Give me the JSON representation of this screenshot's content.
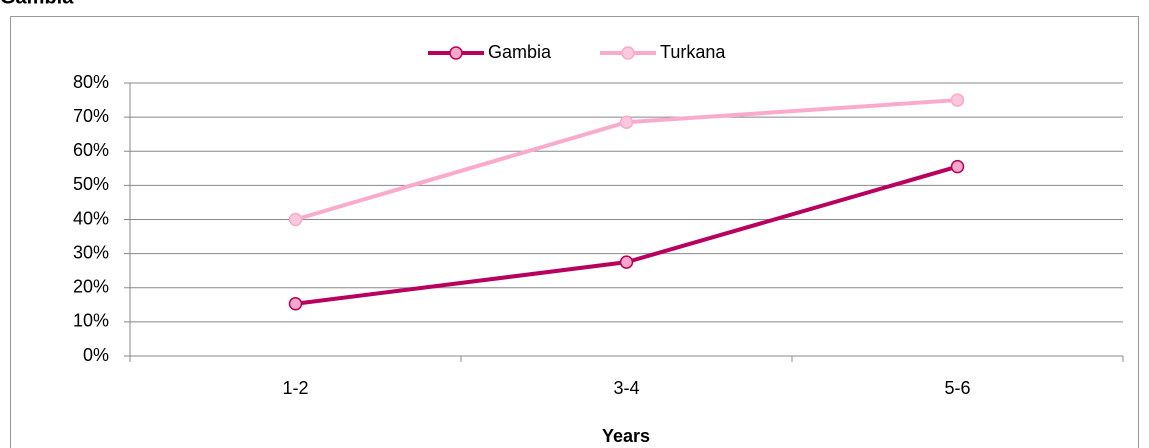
{
  "heading": "Gambia",
  "chart_data": {
    "type": "line",
    "x_label": "Years",
    "categories": [
      "1-2",
      "3-4",
      "5-6"
    ],
    "series": [
      {
        "name": "Gambia",
        "color": "#b8005e",
        "marker_color": "#f5a9c9",
        "values": [
          15.3,
          27.5,
          55.5
        ]
      },
      {
        "name": "Turkana",
        "color": "#f9aacd",
        "marker_color": "#fbc8de",
        "values": [
          40,
          68.5,
          75
        ]
      }
    ],
    "ylim": [
      0,
      80
    ],
    "yticks": [
      {
        "value": 0,
        "label": "0%"
      },
      {
        "value": 10,
        "label": "10%"
      },
      {
        "value": 20,
        "label": "20%"
      },
      {
        "value": 30,
        "label": "30%"
      },
      {
        "value": 40,
        "label": "40%"
      },
      {
        "value": 50,
        "label": "50%"
      },
      {
        "value": 60,
        "label": "60%"
      },
      {
        "value": 70,
        "label": "70%"
      },
      {
        "value": 80,
        "label": "80%"
      }
    ],
    "grid": true,
    "legend": "top"
  }
}
